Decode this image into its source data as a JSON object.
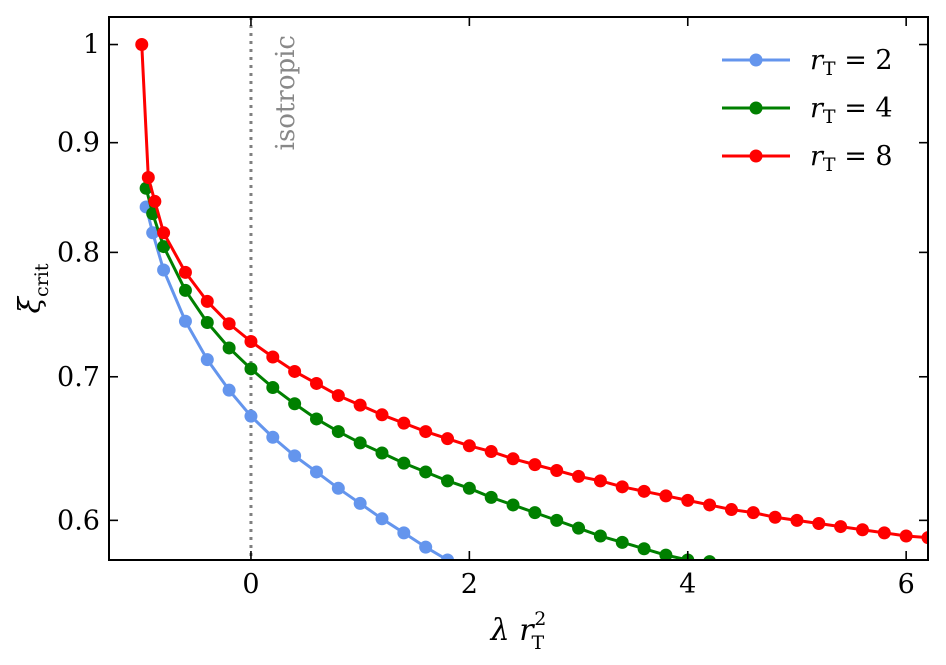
{
  "chart_data": {
    "type": "line",
    "title": "",
    "xlabel": {
      "main": "λ r",
      "sub": "T",
      "sup": "2"
    },
    "ylabel": {
      "main": "ξ",
      "sub": "crit"
    },
    "xlim": [
      -1.3,
      6.2
    ],
    "ylim": [
      0.575,
      1.03
    ],
    "y_scale": "log",
    "xticks": [
      0,
      2,
      4,
      6
    ],
    "xtick_labels": [
      "0",
      "2",
      "4",
      "6"
    ],
    "yticks": [
      0.6,
      0.7,
      0.8,
      0.9,
      1.0
    ],
    "ytick_labels": [
      "0.6",
      "0.7",
      "0.8",
      "0.9",
      "1"
    ],
    "grid": false,
    "legend_position": "top-right",
    "annotation": {
      "text": "isotropic",
      "x": 0,
      "style": "dotted vertical line"
    },
    "series": [
      {
        "name": "r_T = 2",
        "label_main": "r",
        "label_sub": "T",
        "label_rest": " = 2",
        "color": "#6495ED",
        "x": [
          -0.96,
          -0.9,
          -0.8,
          -0.6,
          -0.4,
          -0.2,
          0,
          0.2,
          0.4,
          0.6,
          0.8,
          1.0,
          1.2,
          1.4,
          1.6,
          1.8
        ],
        "y": [
          0.84,
          0.817,
          0.785,
          0.743,
          0.713,
          0.69,
          0.671,
          0.656,
          0.643,
          0.632,
          0.621,
          0.611,
          0.601,
          0.592,
          0.583,
          0.575
        ]
      },
      {
        "name": "r_T = 4",
        "label_main": "r",
        "label_sub": "T",
        "label_rest": " = 4",
        "color": "#008000",
        "x": [
          -0.96,
          -0.9,
          -0.8,
          -0.6,
          -0.4,
          -0.2,
          0,
          0.2,
          0.4,
          0.6,
          0.8,
          1.0,
          1.2,
          1.4,
          1.6,
          1.8,
          2.0,
          2.2,
          2.4,
          2.6,
          2.8,
          3.0,
          3.2,
          3.4,
          3.6,
          3.8,
          4.0,
          4.2
        ],
        "y": [
          0.857,
          0.834,
          0.805,
          0.768,
          0.742,
          0.722,
          0.706,
          0.692,
          0.68,
          0.669,
          0.66,
          0.652,
          0.645,
          0.638,
          0.632,
          0.626,
          0.621,
          0.615,
          0.61,
          0.605,
          0.6,
          0.595,
          0.59,
          0.586,
          0.582,
          0.578,
          0.575,
          0.574
        ]
      },
      {
        "name": "r_T = 8",
        "label_main": "r",
        "label_sub": "T",
        "label_rest": " = 8",
        "color": "#FF0000",
        "x": [
          -1.0,
          -0.94,
          -0.88,
          -0.8,
          -0.6,
          -0.4,
          -0.2,
          0,
          0.2,
          0.4,
          0.6,
          0.8,
          1.0,
          1.2,
          1.4,
          1.6,
          1.8,
          2.0,
          2.2,
          2.4,
          2.6,
          2.8,
          3.0,
          3.2,
          3.4,
          3.6,
          3.8,
          4.0,
          4.2,
          4.4,
          4.6,
          4.8,
          5.0,
          5.2,
          5.4,
          5.6,
          5.8,
          6.0,
          6.2
        ],
        "y": [
          1.0,
          0.867,
          0.845,
          0.817,
          0.783,
          0.759,
          0.741,
          0.727,
          0.715,
          0.704,
          0.695,
          0.686,
          0.679,
          0.672,
          0.666,
          0.66,
          0.655,
          0.65,
          0.646,
          0.641,
          0.637,
          0.633,
          0.629,
          0.626,
          0.622,
          0.619,
          0.616,
          0.613,
          0.61,
          0.607,
          0.605,
          0.602,
          0.6,
          0.598,
          0.596,
          0.594,
          0.592,
          0.59,
          0.589
        ]
      }
    ]
  }
}
